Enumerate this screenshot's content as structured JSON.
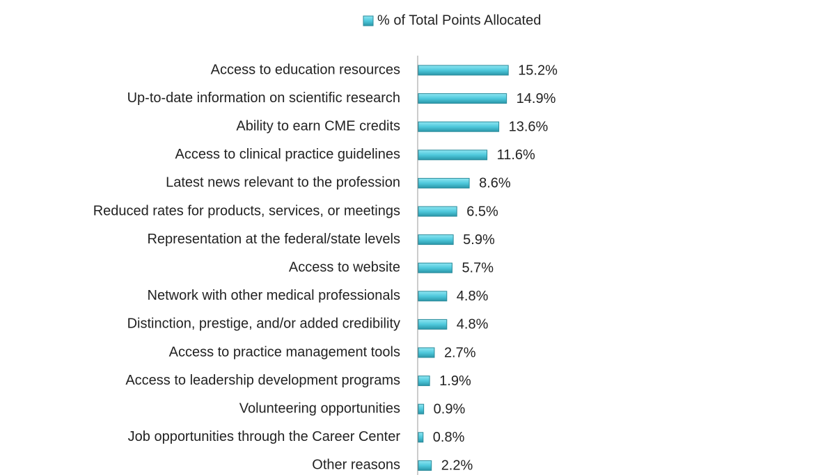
{
  "chart_data": {
    "type": "bar",
    "orientation": "horizontal",
    "categories": [
      "Access to education resources",
      "Up-to-date information on scientific research",
      "Ability to earn CME credits",
      "Access to clinical practice guidelines",
      "Latest news relevant to the profession",
      "Reduced rates for products, services, or meetings",
      "Representation at the federal/state levels",
      "Access to website",
      "Network with other medical professionals",
      "Distinction, prestige, and/or added credibility",
      "Access to practice management tools",
      "Access to leadership development programs",
      "Volunteering opportunities",
      "Job opportunities through the Career Center",
      "Other reasons"
    ],
    "series": [
      {
        "name": "% of Total Points Allocated",
        "color": "#4fc9dc",
        "values": [
          15.2,
          14.9,
          13.6,
          11.6,
          8.6,
          6.5,
          5.9,
          5.7,
          4.8,
          4.8,
          2.7,
          1.9,
          0.9,
          0.8,
          2.2
        ],
        "value_labels": [
          "15.2%",
          "14.9%",
          "13.6%",
          "11.6%",
          "8.6%",
          "6.5%",
          "5.9%",
          "5.7%",
          "4.8%",
          "4.8%",
          "2.7%",
          "1.9%",
          "0.9%",
          "0.8%",
          "2.2%"
        ]
      }
    ],
    "legend": "top"
  }
}
